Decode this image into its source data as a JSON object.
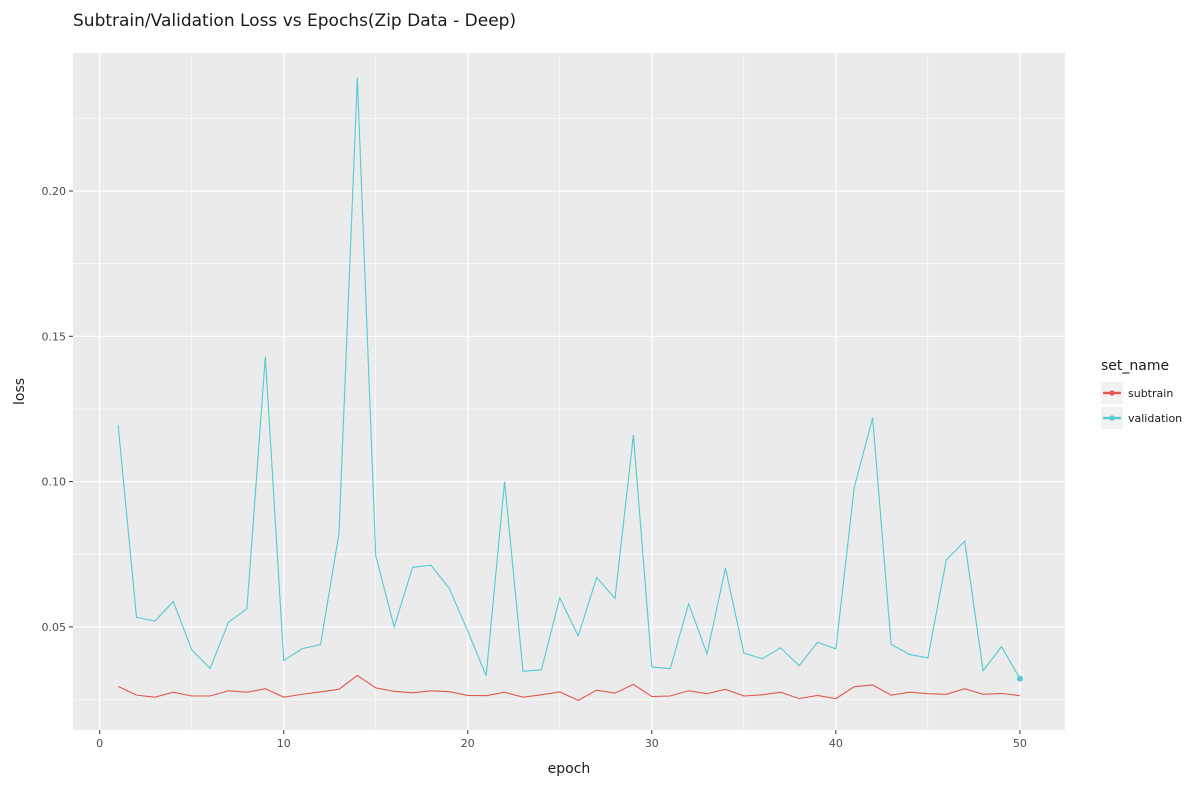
{
  "chart_data": {
    "type": "line",
    "title": "Subtrain/Validation Loss vs Epochs(Zip Data - Deep)",
    "xlabel": "epoch",
    "ylabel": "loss",
    "xlim": [
      -1.45,
      52.45
    ],
    "ylim": [
      0.0145,
      0.2475
    ],
    "x_ticks": [
      0,
      10,
      20,
      30,
      40,
      50
    ],
    "x_tick_labels": [
      "0",
      "10",
      "20",
      "30",
      "40",
      "50"
    ],
    "y_ticks": [
      0.05,
      0.1,
      0.15,
      0.2
    ],
    "y_tick_labels": [
      "0.05",
      "0.10",
      "0.15",
      "0.20"
    ],
    "grid": true,
    "legend": {
      "title": "set_name",
      "placement": "right"
    },
    "x": [
      1,
      2,
      3,
      4,
      5,
      6,
      7,
      8,
      9,
      10,
      11,
      12,
      13,
      14,
      15,
      16,
      17,
      18,
      19,
      20,
      21,
      22,
      23,
      24,
      25,
      26,
      27,
      28,
      29,
      30,
      31,
      32,
      33,
      34,
      35,
      36,
      37,
      38,
      39,
      40,
      41,
      42,
      43,
      44,
      45,
      46,
      47,
      48,
      49,
      50
    ],
    "series": [
      {
        "name": "subtrain",
        "color": "#e0594f",
        "values": [
          0.0295,
          0.0265,
          0.0258,
          0.0275,
          0.0262,
          0.0262,
          0.028,
          0.0275,
          0.0287,
          0.0258,
          0.0268,
          0.0276,
          0.0285,
          0.0333,
          0.029,
          0.0278,
          0.0273,
          0.028,
          0.0277,
          0.0264,
          0.0263,
          0.0275,
          0.0258,
          0.0266,
          0.0276,
          0.0247,
          0.0282,
          0.0272,
          0.0302,
          0.026,
          0.0262,
          0.028,
          0.027,
          0.0285,
          0.0262,
          0.0266,
          0.0275,
          0.0253,
          0.0264,
          0.0253,
          0.0294,
          0.03,
          0.0265,
          0.0275,
          0.027,
          0.0268,
          0.0287,
          0.0268,
          0.0271,
          0.0263
        ]
      },
      {
        "name": "validation",
        "color": "#54cad3",
        "values": [
          0.1195,
          0.0533,
          0.052,
          0.0587,
          0.0421,
          0.0357,
          0.0516,
          0.0562,
          0.143,
          0.0384,
          0.0425,
          0.0439,
          0.082,
          0.239,
          0.0745,
          0.05,
          0.0705,
          0.0712,
          0.0632,
          0.0485,
          0.0332,
          0.1,
          0.0347,
          0.0352,
          0.06,
          0.0468,
          0.067,
          0.0598,
          0.116,
          0.0362,
          0.0356,
          0.058,
          0.0407,
          0.0702,
          0.041,
          0.039,
          0.0428,
          0.0366,
          0.0447,
          0.0424,
          0.098,
          0.122,
          0.044,
          0.0405,
          0.0393,
          0.073,
          0.0795,
          0.0349,
          0.0432,
          0.0322
        ]
      }
    ]
  }
}
